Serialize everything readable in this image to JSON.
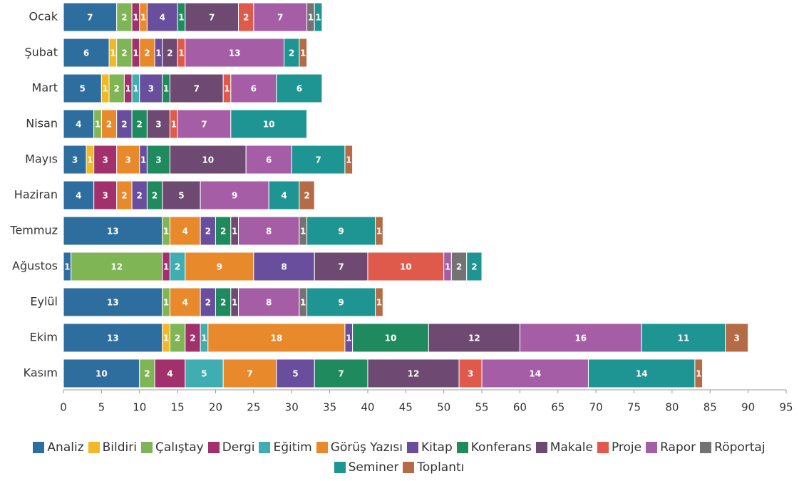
{
  "chart_data": {
    "type": "stacked_bar_horizontal",
    "categories": [
      "Ocak",
      "Şubat",
      "Mart",
      "Nisan",
      "Mayıs",
      "Haziran",
      "Temmuz",
      "Ağustos",
      "Eylül",
      "Ekim",
      "Kasım"
    ],
    "series": [
      {
        "name": "Analiz",
        "color": "#2e6e9e",
        "values": [
          7,
          6,
          5,
          4,
          3,
          4,
          13,
          1,
          13,
          13,
          10
        ]
      },
      {
        "name": "Bildiri",
        "color": "#f2b828",
        "values": [
          0,
          1,
          1,
          0,
          1,
          0,
          0,
          0,
          0,
          1,
          0
        ]
      },
      {
        "name": "Çalıştay",
        "color": "#7fb555",
        "values": [
          2,
          2,
          2,
          1,
          0,
          0,
          1,
          12,
          1,
          2,
          2
        ]
      },
      {
        "name": "Dergi",
        "color": "#a2306c",
        "values": [
          1,
          1,
          1,
          0,
          3,
          3,
          0,
          1,
          0,
          2,
          4
        ]
      },
      {
        "name": "Eğitim",
        "color": "#40aeb0",
        "values": [
          0,
          0,
          1,
          0,
          0,
          0,
          0,
          2,
          0,
          1,
          5
        ]
      },
      {
        "name": "Görüş Yazısı",
        "color": "#e88a2c",
        "values": [
          1,
          2,
          0,
          2,
          3,
          2,
          4,
          9,
          4,
          18,
          7
        ]
      },
      {
        "name": "Kitap",
        "color": "#6a4e9e",
        "values": [
          4,
          1,
          3,
          2,
          1,
          2,
          2,
          8,
          2,
          1,
          5
        ]
      },
      {
        "name": "Konferans",
        "color": "#1f8a5e",
        "values": [
          1,
          0,
          1,
          2,
          3,
          2,
          2,
          0,
          2,
          10,
          7
        ]
      },
      {
        "name": "Makale",
        "color": "#6e4a72",
        "values": [
          7,
          2,
          7,
          3,
          10,
          5,
          1,
          7,
          1,
          12,
          12
        ]
      },
      {
        "name": "Proje",
        "color": "#e05a4c",
        "values": [
          2,
          1,
          1,
          1,
          0,
          0,
          0,
          10,
          0,
          0,
          3
        ]
      },
      {
        "name": "Rapor",
        "color": "#a55ea6",
        "values": [
          7,
          13,
          6,
          7,
          6,
          9,
          8,
          1,
          8,
          16,
          14
        ]
      },
      {
        "name": "Röportaj",
        "color": "#737373",
        "values": [
          1,
          0,
          0,
          0,
          0,
          0,
          1,
          2,
          1,
          0,
          0
        ]
      },
      {
        "name": "Seminer",
        "color": "#1e9592",
        "values": [
          1,
          2,
          6,
          10,
          7,
          4,
          9,
          2,
          9,
          11,
          14
        ]
      },
      {
        "name": "Toplantı",
        "color": "#b56b46",
        "values": [
          0,
          1,
          0,
          0,
          1,
          2,
          1,
          0,
          1,
          3,
          1
        ]
      }
    ],
    "xlim": [
      0,
      95
    ],
    "xticks": [
      0,
      5,
      10,
      15,
      20,
      25,
      30,
      35,
      40,
      45,
      50,
      55,
      60,
      65,
      70,
      75,
      80,
      85,
      90,
      95
    ],
    "legend": "bottom"
  }
}
